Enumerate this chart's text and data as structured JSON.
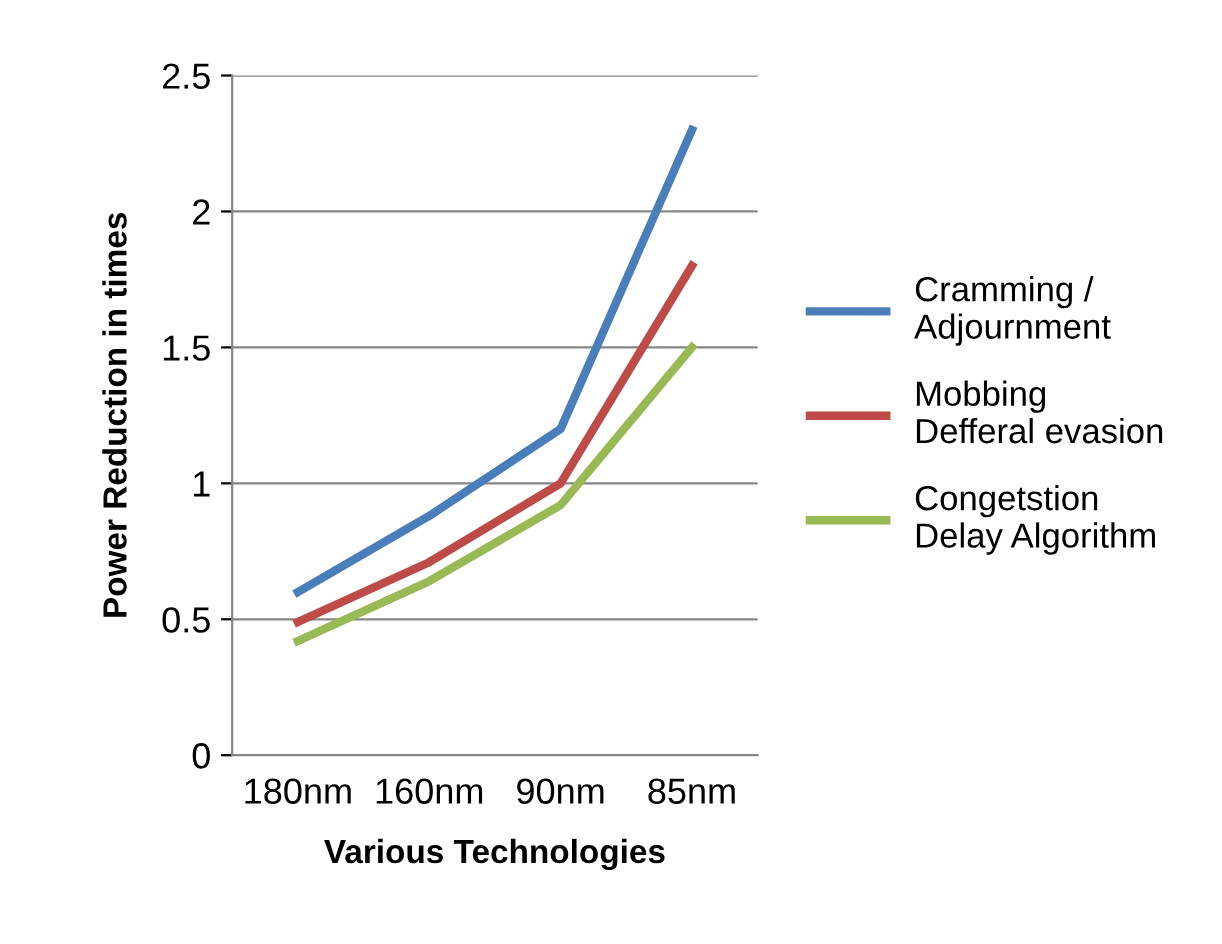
{
  "chart_data": {
    "type": "line",
    "xlabel": "Various Technologies",
    "ylabel": "Power Reduction in times",
    "categories": [
      "180nm",
      "160nm",
      "90nm",
      "85nm"
    ],
    "series": [
      {
        "name": "Cramming /\nAdjournment",
        "color": "#4a7ebb",
        "values": [
          0.6,
          0.88,
          1.2,
          2.3
        ]
      },
      {
        "name": "Mobbing\nDefferal evasion",
        "color": "#be4b48",
        "values": [
          0.49,
          0.71,
          1.0,
          1.8
        ]
      },
      {
        "name": "Congetstion\nDelay Algorithm",
        "color": "#98b954",
        "values": [
          0.42,
          0.64,
          0.92,
          1.5
        ]
      }
    ],
    "ylim": [
      0,
      2.5
    ],
    "yticks": [
      0,
      0.5,
      1,
      1.5,
      2,
      2.5
    ],
    "grid": "y",
    "legend": "right",
    "marker": "none",
    "line_style": "solid"
  }
}
